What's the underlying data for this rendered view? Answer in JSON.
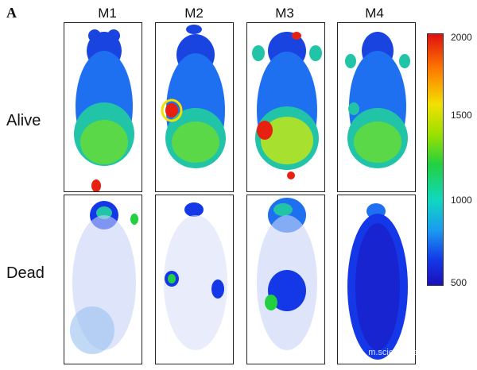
{
  "panel_label": "A",
  "columns": [
    "M1",
    "M2",
    "M3",
    "M4"
  ],
  "rows": [
    "Alive",
    "Dead"
  ],
  "colorbar": {
    "ticks": [
      "2000",
      "1500",
      "1000",
      "500"
    ],
    "colors": [
      "#e01010",
      "#ff7a00",
      "#f2e000",
      "#22d040",
      "#10d8c0",
      "#1a9cf0",
      "#1438e8",
      "#1a10b8"
    ]
  },
  "watermark": "m.sciencenet"
}
